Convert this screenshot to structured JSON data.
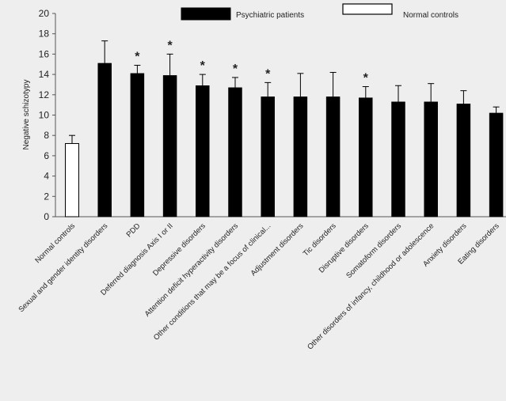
{
  "chart_data": {
    "type": "bar",
    "ylabel": "Negative schizotypy",
    "ylim": [
      0,
      20
    ],
    "yticks": [
      0,
      2,
      4,
      6,
      8,
      10,
      12,
      14,
      16,
      18,
      20
    ],
    "legend": {
      "placement": "top",
      "entries": [
        {
          "name": "Psychiatric patients",
          "color": "#000000"
        },
        {
          "name": "Normal controls",
          "color": "#ffffff"
        }
      ]
    },
    "significance_marker": "*",
    "bars": [
      {
        "category": "Normal controls",
        "value": 7.2,
        "error": 0.8,
        "group": "Normal controls",
        "significant": false
      },
      {
        "category": "Sexual and gender identity disorders",
        "value": 15.1,
        "error": 2.2,
        "group": "Psychiatric patients",
        "significant": false
      },
      {
        "category": "PDD",
        "value": 14.1,
        "error": 0.8,
        "group": "Psychiatric patients",
        "significant": true
      },
      {
        "category": "Deferred diagnosis Axis I or II",
        "value": 13.9,
        "error": 2.1,
        "group": "Psychiatric patients",
        "significant": true
      },
      {
        "category": "Depressive disorders",
        "value": 12.9,
        "error": 1.1,
        "group": "Psychiatric patients",
        "significant": true
      },
      {
        "category": "Attention deficit hyperactivity disorders",
        "value": 12.7,
        "error": 1.0,
        "group": "Psychiatric patients",
        "significant": true
      },
      {
        "category": "Other conditions that may be a focus of clinical...",
        "value": 11.8,
        "error": 1.4,
        "group": "Psychiatric patients",
        "significant": true
      },
      {
        "category": "Adjustment disorders",
        "value": 11.8,
        "error": 2.3,
        "group": "Psychiatric patients",
        "significant": false
      },
      {
        "category": "Tic disorders",
        "value": 11.8,
        "error": 2.4,
        "group": "Psychiatric patients",
        "significant": false
      },
      {
        "category": "Disruptive disorders",
        "value": 11.7,
        "error": 1.1,
        "group": "Psychiatric patients",
        "significant": true
      },
      {
        "category": "Somatoform disorders",
        "value": 11.3,
        "error": 1.6,
        "group": "Psychiatric patients",
        "significant": false
      },
      {
        "category": "Other disorders of infancy, childhood or adolescence",
        "value": 11.3,
        "error": 1.8,
        "group": "Psychiatric patients",
        "significant": false
      },
      {
        "category": "Anxiety disorders",
        "value": 11.1,
        "error": 1.3,
        "group": "Psychiatric patients",
        "significant": false
      },
      {
        "category": "Eating disorders",
        "value": 10.2,
        "error": 0.6,
        "group": "Psychiatric patients",
        "significant": false
      }
    ]
  }
}
